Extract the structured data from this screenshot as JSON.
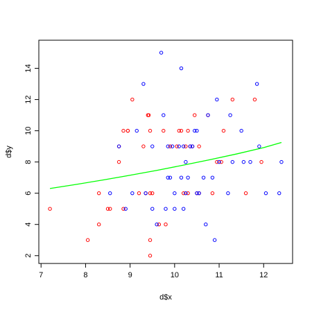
{
  "chart_data": {
    "type": "scatter",
    "title": "",
    "xlabel": "d$x",
    "ylabel": "d$y",
    "xlim": [
      6.95,
      12.65
    ],
    "ylim": [
      1.5,
      15.8
    ],
    "x_ticks": [
      7,
      8,
      9,
      10,
      11,
      12
    ],
    "y_ticks": [
      2,
      4,
      6,
      8,
      10,
      12,
      14
    ],
    "grid": false,
    "legend": "none",
    "series": [
      {
        "color": "#ff0000",
        "marker": "open-circle",
        "points": [
          [
            7.2,
            5
          ],
          [
            8.05,
            3
          ],
          [
            8.3,
            4
          ],
          [
            8.3,
            6
          ],
          [
            8.5,
            5
          ],
          [
            8.55,
            5
          ],
          [
            8.75,
            8
          ],
          [
            8.75,
            9
          ],
          [
            8.85,
            5
          ],
          [
            8.85,
            10
          ],
          [
            8.95,
            10
          ],
          [
            8.95,
            10
          ],
          [
            9.05,
            12
          ],
          [
            9.2,
            6
          ],
          [
            9.3,
            9
          ],
          [
            9.35,
            6
          ],
          [
            9.4,
            11
          ],
          [
            9.42,
            11
          ],
          [
            9.45,
            6
          ],
          [
            9.45,
            2
          ],
          [
            9.45,
            3
          ],
          [
            9.5,
            6
          ],
          [
            9.45,
            10
          ],
          [
            9.65,
            4
          ],
          [
            9.75,
            10
          ],
          [
            9.8,
            4
          ],
          [
            9.9,
            9
          ],
          [
            10.05,
            9
          ],
          [
            10.1,
            10
          ],
          [
            10.15,
            10
          ],
          [
            10.2,
            6
          ],
          [
            10.25,
            9
          ],
          [
            10.3,
            10
          ],
          [
            10.3,
            6
          ],
          [
            10.35,
            9
          ],
          [
            10.4,
            9
          ],
          [
            10.45,
            11
          ],
          [
            10.5,
            6
          ],
          [
            10.55,
            9
          ],
          [
            10.55,
            6
          ],
          [
            10.75,
            11
          ],
          [
            10.85,
            6
          ],
          [
            10.95,
            8
          ],
          [
            11.05,
            8
          ],
          [
            11.1,
            10
          ],
          [
            11.3,
            12
          ],
          [
            11.6,
            6
          ],
          [
            11.8,
            12
          ],
          [
            11.95,
            8
          ]
        ]
      },
      {
        "color": "#0000ff",
        "marker": "open-circle",
        "points": [
          [
            8.55,
            6
          ],
          [
            8.75,
            9
          ],
          [
            8.9,
            5
          ],
          [
            9.05,
            6
          ],
          [
            9.15,
            10
          ],
          [
            9.3,
            13
          ],
          [
            9.35,
            6
          ],
          [
            9.5,
            5
          ],
          [
            9.5,
            9
          ],
          [
            9.6,
            4
          ],
          [
            9.7,
            15
          ],
          [
            9.75,
            11
          ],
          [
            9.8,
            5
          ],
          [
            9.85,
            9
          ],
          [
            9.85,
            7
          ],
          [
            9.9,
            7
          ],
          [
            9.95,
            9
          ],
          [
            10.0,
            5
          ],
          [
            10.0,
            6
          ],
          [
            10.1,
            9
          ],
          [
            10.15,
            14
          ],
          [
            10.15,
            7
          ],
          [
            10.2,
            9
          ],
          [
            10.2,
            5
          ],
          [
            10.25,
            8
          ],
          [
            10.25,
            6
          ],
          [
            10.3,
            7
          ],
          [
            10.35,
            9
          ],
          [
            10.4,
            9
          ],
          [
            10.45,
            10
          ],
          [
            10.5,
            10
          ],
          [
            10.5,
            6
          ],
          [
            10.55,
            6
          ],
          [
            10.65,
            7
          ],
          [
            10.7,
            4
          ],
          [
            10.75,
            11
          ],
          [
            10.85,
            7
          ],
          [
            10.9,
            3
          ],
          [
            10.95,
            12
          ],
          [
            11.0,
            8
          ],
          [
            11.2,
            6
          ],
          [
            11.25,
            11
          ],
          [
            11.3,
            8
          ],
          [
            11.5,
            10
          ],
          [
            11.55,
            8
          ],
          [
            11.7,
            8
          ],
          [
            11.85,
            13
          ],
          [
            11.9,
            9
          ],
          [
            12.05,
            6
          ],
          [
            12.35,
            6
          ],
          [
            12.4,
            8
          ]
        ]
      }
    ],
    "fit_line": {
      "color": "#00ff00",
      "x": [
        7.2,
        7.8,
        8.4,
        9.0,
        9.6,
        10.2,
        10.8,
        11.4,
        12.0,
        12.4
      ],
      "y": [
        6.3,
        6.57,
        6.85,
        7.15,
        7.46,
        7.8,
        8.15,
        8.52,
        8.92,
        9.25
      ]
    }
  }
}
